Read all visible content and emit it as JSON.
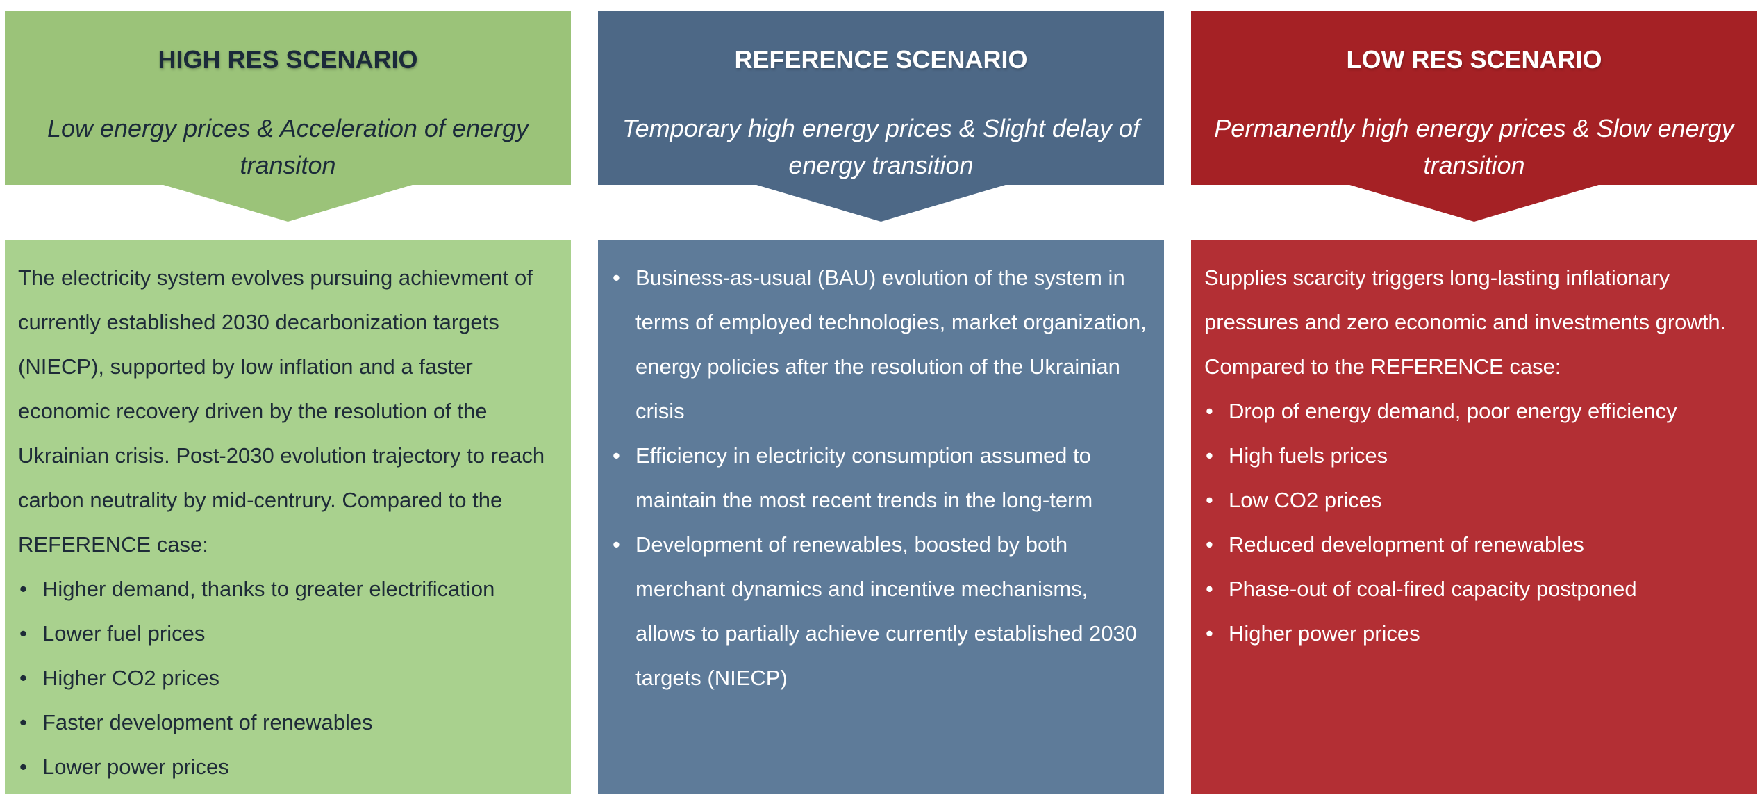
{
  "colors": {
    "high_header": "#9bc379",
    "high_body": "#a9d18e",
    "reference_header": "#4d6886",
    "reference_body": "#5e7b99",
    "low_header": "#a52125",
    "low_body": "#b32f34"
  },
  "high": {
    "title": "HIGH RES SCENARIO",
    "subtitle": "Low energy prices & Acceleration of energy transiton",
    "intro": "The electricity system evolves pursuing achievment of currently established 2030 decarbonization targets (NIECP), supported by low inflation and a faster economic recovery driven by the resolution of the Ukrainian crisis. Post-2030 evolution trajectory to reach carbon neutrality by mid-centrury. Compared to the REFERENCE case:",
    "bullets": [
      "Higher demand, thanks to greater electrification",
      "Lower fuel prices",
      "Higher CO2 prices",
      "Faster development of renewables",
      "Lower power prices"
    ]
  },
  "reference": {
    "title": "REFERENCE SCENARIO",
    "subtitle": "Temporary high energy prices & Slight delay of energy transition",
    "bullets": [
      "Business-as-usual (BAU) evolution of the system in terms of employed technologies, market organization, energy policies after the resolution of the Ukrainian crisis",
      "Efficiency in electricity consumption assumed to maintain the most recent trends in the long-term",
      "Development of renewables, boosted by both merchant dynamics and incentive mechanisms, allows to partially achieve currently established 2030 targets (NIECP)"
    ]
  },
  "low": {
    "title": "LOW RES SCENARIO",
    "subtitle": "Permanently high energy prices & Slow energy transition",
    "intro": "Supplies scarcity triggers long-lasting inflationary pressures and zero economic and investments growth. Compared to the REFERENCE case:",
    "bullets": [
      "Drop of energy demand, poor energy efficiency",
      "High fuels prices",
      "Low CO2 prices",
      "Reduced development of renewables",
      "Phase-out of coal-fired capacity postponed",
      "Higher power prices"
    ]
  }
}
